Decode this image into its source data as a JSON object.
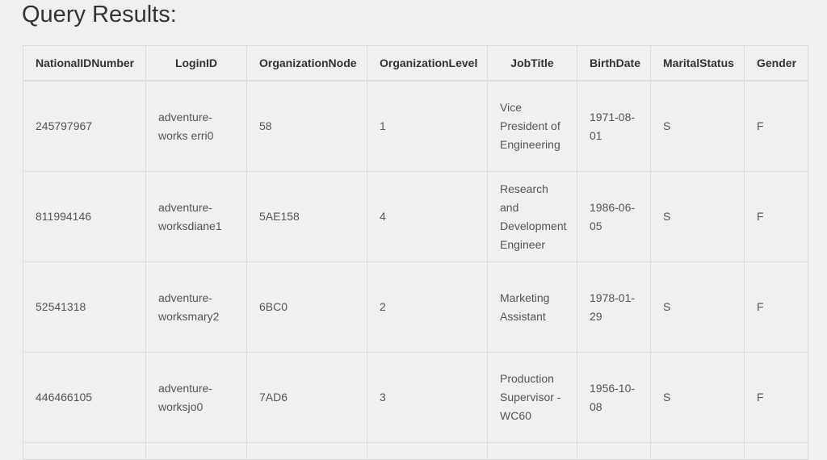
{
  "title": "Query Results:",
  "table": {
    "columns": [
      "NationalIDNumber",
      "LoginID",
      "OrganizationNode",
      "OrganizationLevel",
      "JobTitle",
      "BirthDate",
      "MaritalStatus",
      "Gender",
      ""
    ],
    "rows": [
      [
        "245797967",
        "adventure-works erri0",
        "58",
        "1",
        "Vice President of Engineering",
        "1971-08-01",
        "S",
        "F",
        ""
      ],
      [
        "811994146",
        "adventure-worksdiane1",
        "5AE158",
        "4",
        "Research and Development Engineer",
        "1986-06-05",
        "S",
        "F",
        ""
      ],
      [
        "52541318",
        "adventure-worksmary2",
        "6BC0",
        "2",
        "Marketing Assistant",
        "1978-01-29",
        "S",
        "F",
        ""
      ],
      [
        "446466105",
        "adventure-worksjo0",
        "7AD6",
        "3",
        "Production Supervisor - WC60",
        "1956-10-08",
        "S",
        "F",
        ""
      ]
    ]
  }
}
